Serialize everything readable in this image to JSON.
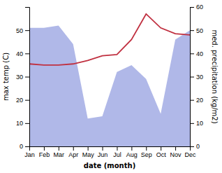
{
  "chart_data": {
    "type": "line",
    "xlabel": "date (month)",
    "ylabel": "max temp (C)",
    "y2label": "med. precipitation (kg/m2)",
    "categories": [
      "Jan",
      "Feb",
      "Mar",
      "Apr",
      "May",
      "Jun",
      "Jul",
      "Aug",
      "Sep",
      "Oct",
      "Nov",
      "Dec"
    ],
    "series": [
      {
        "type": "area",
        "color": "#b0b8e8",
        "values": [
          51,
          51,
          52,
          44,
          12,
          13,
          32,
          35,
          29,
          14,
          46,
          50
        ]
      },
      {
        "type": "line",
        "axis": "y2",
        "color": "#c03040",
        "values": [
          35.5,
          35.0,
          35.0,
          35.5,
          37.0,
          39.0,
          39.5,
          46.0,
          57.0,
          51.0,
          48.5,
          48.0
        ]
      }
    ],
    "ylim": [
      0,
      60
    ],
    "yticks": [
      0,
      10,
      20,
      30,
      40,
      50
    ],
    "y2lim": [
      0,
      60
    ],
    "y2ticks": [
      0,
      10,
      20,
      30,
      40,
      50,
      60
    ],
    "grid": false
  }
}
